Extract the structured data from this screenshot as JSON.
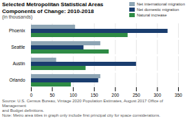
{
  "chart_data": {
    "type": "bar",
    "orientation": "horizontal",
    "title": "Selected Metropolitan Statistical Areas\nComponents of Change: 2010-2018",
    "subtitle": "(in thousands)",
    "annotations": [
      "Source: U.S. Census Bureau, Vintage 2020 Population Estimates, August 2017 Office of Management\nand Budget definitions.\nNote: Metro area titles in graph only include first principal city for space considerations."
    ],
    "categories": [
      "Phoenix",
      "Seattle",
      "Austin",
      "Orlando"
    ],
    "series": [
      {
        "name": "Net international migration",
        "color": "#8ea5b4",
        "values": [
          105,
          165,
          60,
          165
        ]
      },
      {
        "name": "Net domestic migration",
        "color": "#1a3d6e",
        "values": [
          325,
          125,
          250,
          160
        ]
      },
      {
        "name": "Natural increase",
        "color": "#2e8b45",
        "values": [
          230,
          185,
          130,
          95
        ]
      }
    ],
    "xlim": [
      0,
      350
    ],
    "xticks": [
      0,
      50,
      100,
      150,
      200,
      250,
      300,
      350
    ],
    "grid": true,
    "legend": "right"
  }
}
